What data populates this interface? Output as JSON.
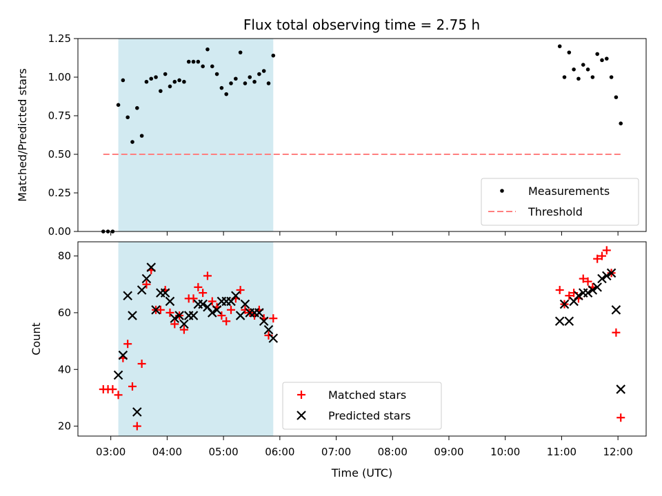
{
  "chart_data": [
    {
      "panel": "top",
      "type": "scatter",
      "title": "Flux total observing time = 2.75 h",
      "xlabel": "",
      "ylabel": "Matched/Predicted stars",
      "xlim": [
        "02:25",
        "12:30"
      ],
      "ylim": [
        0,
        1.25
      ],
      "yticks": [
        "0.00",
        "0.25",
        "0.50",
        "0.75",
        "1.00",
        "1.25"
      ],
      "shaded_region": [
        "03:08",
        "05:53"
      ],
      "legend_position": "bottom-right",
      "series": [
        {
          "name": "Measurements",
          "color": "#000000",
          "points": [
            [
              "02:52",
              0.0
            ],
            [
              "02:57",
              0.0
            ],
            [
              "03:02",
              0.0
            ],
            [
              "03:08",
              0.82
            ],
            [
              "03:13",
              0.98
            ],
            [
              "03:18",
              0.74
            ],
            [
              "03:23",
              0.58
            ],
            [
              "03:28",
              0.8
            ],
            [
              "03:33",
              0.62
            ],
            [
              "03:38",
              0.97
            ],
            [
              "03:43",
              0.99
            ],
            [
              "03:48",
              1.0
            ],
            [
              "03:53",
              0.91
            ],
            [
              "03:58",
              1.02
            ],
            [
              "04:03",
              0.94
            ],
            [
              "04:08",
              0.97
            ],
            [
              "04:13",
              0.98
            ],
            [
              "04:18",
              0.97
            ],
            [
              "04:23",
              1.1
            ],
            [
              "04:28",
              1.1
            ],
            [
              "04:33",
              1.1
            ],
            [
              "04:38",
              1.07
            ],
            [
              "04:43",
              1.18
            ],
            [
              "04:48",
              1.07
            ],
            [
              "04:53",
              1.02
            ],
            [
              "04:58",
              0.93
            ],
            [
              "05:03",
              0.89
            ],
            [
              "05:08",
              0.96
            ],
            [
              "05:13",
              0.99
            ],
            [
              "05:18",
              1.16
            ],
            [
              "05:23",
              0.96
            ],
            [
              "05:28",
              1.0
            ],
            [
              "05:33",
              0.97
            ],
            [
              "05:38",
              1.02
            ],
            [
              "05:43",
              1.04
            ],
            [
              "05:48",
              0.96
            ],
            [
              "05:53",
              1.14
            ],
            [
              "10:58",
              1.2
            ],
            [
              "11:03",
              1.0
            ],
            [
              "11:08",
              1.16
            ],
            [
              "11:13",
              1.05
            ],
            [
              "11:18",
              0.99
            ],
            [
              "11:23",
              1.08
            ],
            [
              "11:28",
              1.05
            ],
            [
              "11:33",
              1.0
            ],
            [
              "11:38",
              1.15
            ],
            [
              "11:43",
              1.11
            ],
            [
              "11:48",
              1.12
            ],
            [
              "11:53",
              1.0
            ],
            [
              "11:58",
              0.87
            ],
            [
              "12:03",
              0.7
            ]
          ]
        },
        {
          "name": "Threshold",
          "type": "line",
          "color": "#ff7f7f",
          "dash": true,
          "points": [
            [
              "02:52",
              0.5
            ],
            [
              "12:03",
              0.5
            ]
          ]
        }
      ]
    },
    {
      "panel": "bottom",
      "type": "scatter",
      "title": "",
      "xlabel": "Time (UTC)",
      "ylabel": "Count",
      "xlim": [
        "02:25",
        "12:30"
      ],
      "ylim": [
        16.5,
        85
      ],
      "yticks": [
        "20",
        "40",
        "60",
        "80"
      ],
      "xticks": [
        "03:00",
        "04:00",
        "05:00",
        "06:00",
        "07:00",
        "08:00",
        "09:00",
        "10:00",
        "11:00",
        "12:00"
      ],
      "shaded_region": [
        "03:08",
        "05:53"
      ],
      "legend_position": "lower-center",
      "series": [
        {
          "name": "Matched stars",
          "marker": "plus",
          "color": "#ff0000",
          "points": [
            [
              "02:52",
              33
            ],
            [
              "02:57",
              33
            ],
            [
              "03:02",
              33
            ],
            [
              "03:08",
              31
            ],
            [
              "03:13",
              44
            ],
            [
              "03:18",
              49
            ],
            [
              "03:23",
              34
            ],
            [
              "03:28",
              20
            ],
            [
              "03:33",
              42
            ],
            [
              "03:38",
              70
            ],
            [
              "03:43",
              75
            ],
            [
              "03:48",
              61
            ],
            [
              "03:53",
              61
            ],
            [
              "03:58",
              68
            ],
            [
              "04:03",
              60
            ],
            [
              "04:08",
              56
            ],
            [
              "04:13",
              59
            ],
            [
              "04:18",
              54
            ],
            [
              "04:23",
              65
            ],
            [
              "04:28",
              65
            ],
            [
              "04:33",
              69
            ],
            [
              "04:38",
              67
            ],
            [
              "04:43",
              73
            ],
            [
              "04:48",
              64
            ],
            [
              "04:53",
              62
            ],
            [
              "04:58",
              59
            ],
            [
              "05:03",
              57
            ],
            [
              "05:08",
              61
            ],
            [
              "05:13",
              65
            ],
            [
              "05:18",
              68
            ],
            [
              "05:23",
              61
            ],
            [
              "05:28",
              60
            ],
            [
              "05:33",
              59
            ],
            [
              "05:38",
              61
            ],
            [
              "05:43",
              58
            ],
            [
              "05:48",
              52
            ],
            [
              "05:53",
              58
            ],
            [
              "10:58",
              68
            ],
            [
              "11:03",
              63
            ],
            [
              "11:08",
              66
            ],
            [
              "11:13",
              67
            ],
            [
              "11:18",
              65
            ],
            [
              "11:23",
              72
            ],
            [
              "11:28",
              71
            ],
            [
              "11:33",
              69
            ],
            [
              "11:38",
              79
            ],
            [
              "11:43",
              80
            ],
            [
              "11:48",
              82
            ],
            [
              "11:53",
              74
            ],
            [
              "11:58",
              53
            ],
            [
              "12:03",
              23
            ]
          ]
        },
        {
          "name": "Predicted stars",
          "marker": "x",
          "color": "#000000",
          "points": [
            [
              "03:08",
              38
            ],
            [
              "03:13",
              45
            ],
            [
              "03:18",
              66
            ],
            [
              "03:23",
              59
            ],
            [
              "03:28",
              25
            ],
            [
              "03:33",
              68
            ],
            [
              "03:38",
              72
            ],
            [
              "03:43",
              76
            ],
            [
              "03:48",
              61
            ],
            [
              "03:53",
              67
            ],
            [
              "03:58",
              67
            ],
            [
              "04:03",
              64
            ],
            [
              "04:08",
              58
            ],
            [
              "04:13",
              59
            ],
            [
              "04:18",
              56
            ],
            [
              "04:23",
              59
            ],
            [
              "04:28",
              59
            ],
            [
              "04:33",
              63
            ],
            [
              "04:38",
              63
            ],
            [
              "04:43",
              62
            ],
            [
              "04:48",
              60
            ],
            [
              "04:53",
              61
            ],
            [
              "04:58",
              64
            ],
            [
              "05:03",
              64
            ],
            [
              "05:08",
              64
            ],
            [
              "05:13",
              66
            ],
            [
              "05:18",
              59
            ],
            [
              "05:23",
              63
            ],
            [
              "05:28",
              60
            ],
            [
              "05:33",
              60
            ],
            [
              "05:38",
              60
            ],
            [
              "05:43",
              57
            ],
            [
              "05:48",
              54
            ],
            [
              "05:53",
              51
            ],
            [
              "10:58",
              57
            ],
            [
              "11:03",
              63
            ],
            [
              "11:08",
              57
            ],
            [
              "11:13",
              64
            ],
            [
              "11:18",
              66
            ],
            [
              "11:23",
              67
            ],
            [
              "11:28",
              67
            ],
            [
              "11:33",
              68
            ],
            [
              "11:38",
              69
            ],
            [
              "11:43",
              72
            ],
            [
              "11:48",
              73
            ],
            [
              "11:53",
              74
            ],
            [
              "11:58",
              61
            ],
            [
              "12:03",
              33
            ]
          ]
        }
      ]
    }
  ],
  "colors": {
    "shade": "#add8e6",
    "matched": "#ff0000",
    "predicted": "#000000",
    "measurement": "#000000",
    "threshold": "#ff7f7f"
  }
}
